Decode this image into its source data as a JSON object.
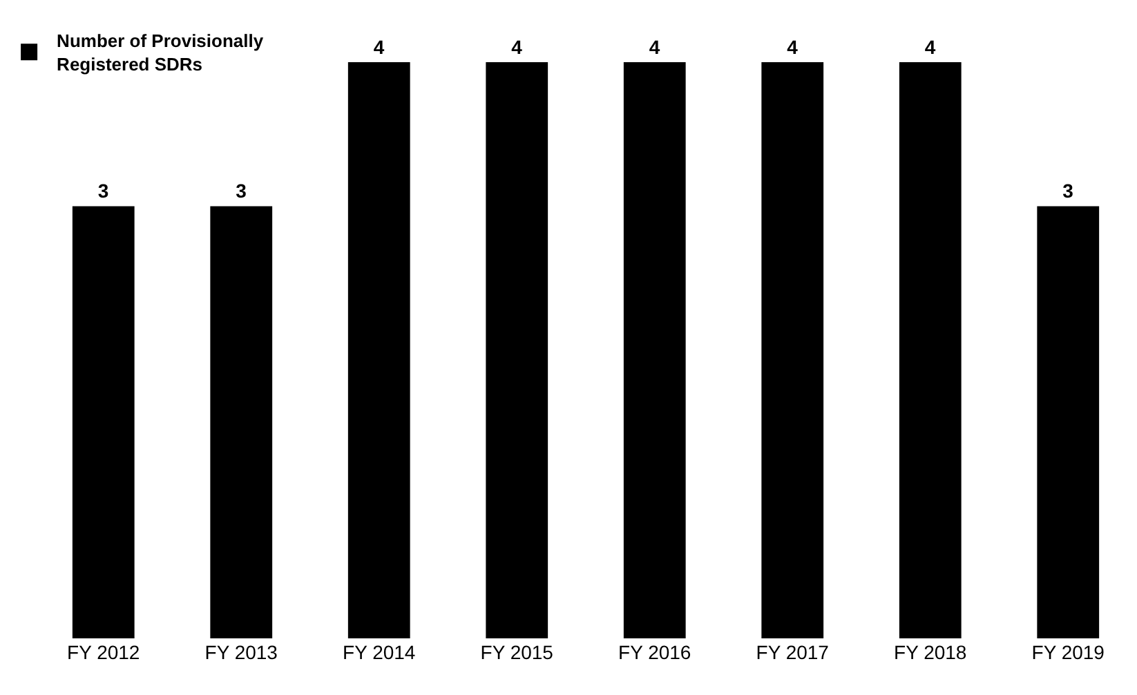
{
  "chart_data": {
    "type": "bar",
    "categories": [
      "FY 2012",
      "FY 2013",
      "FY 2014",
      "FY 2015",
      "FY 2016",
      "FY 2017",
      "FY 2018",
      "FY 2019"
    ],
    "series": [
      {
        "name": "Number of Provisionally Registered SDRs",
        "color": "#000000",
        "values": [
          3,
          3,
          4,
          4,
          4,
          4,
          4,
          3
        ]
      }
    ],
    "data_labels": true,
    "legend": "top left"
  }
}
